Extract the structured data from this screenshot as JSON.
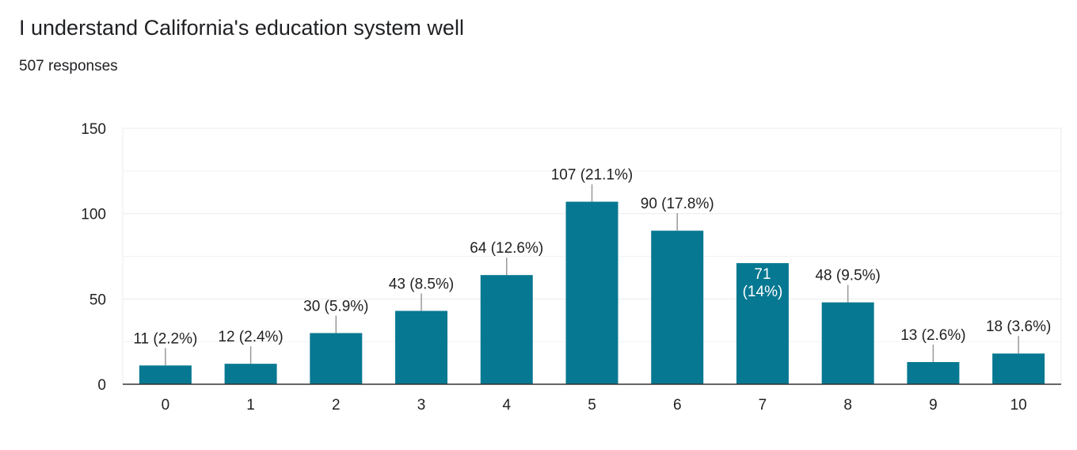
{
  "question": {
    "title": "I understand California's education system well",
    "responses": "507 responses"
  },
  "colors": {
    "bar": "#077891",
    "bar_label_inside": "#ffffff",
    "text": "#222222",
    "gridline": "#ebebeb",
    "axis": "#333333",
    "leader": "#999999"
  },
  "chart_data": {
    "type": "bar",
    "title": "I understand California's education system well",
    "categories": [
      "0",
      "1",
      "2",
      "3",
      "4",
      "5",
      "6",
      "7",
      "8",
      "9",
      "10"
    ],
    "values": [
      11,
      12,
      30,
      43,
      64,
      107,
      90,
      71,
      48,
      13,
      18
    ],
    "data_labels": [
      "11 (2.2%)",
      "12 (2.4%)",
      "30 (5.9%)",
      "43 (8.5%)",
      "64 (12.6%)",
      "107 (21.1%)",
      "90 (17.8%)",
      "71 (14%)",
      "48 (9.5%)",
      "13 (2.6%)",
      "18 (3.6%)"
    ],
    "inside_label_index": 7,
    "inside_label_lines": [
      "71",
      "(14%)"
    ],
    "ylim": [
      0,
      150
    ],
    "y_ticks": [
      0,
      50,
      100,
      150
    ],
    "y_tick_labels": [
      "0",
      "50",
      "100",
      "150"
    ],
    "minor_gridlines": [
      25,
      75,
      125
    ],
    "xlabel": "",
    "ylabel": "",
    "grid": true,
    "legend": "none"
  }
}
